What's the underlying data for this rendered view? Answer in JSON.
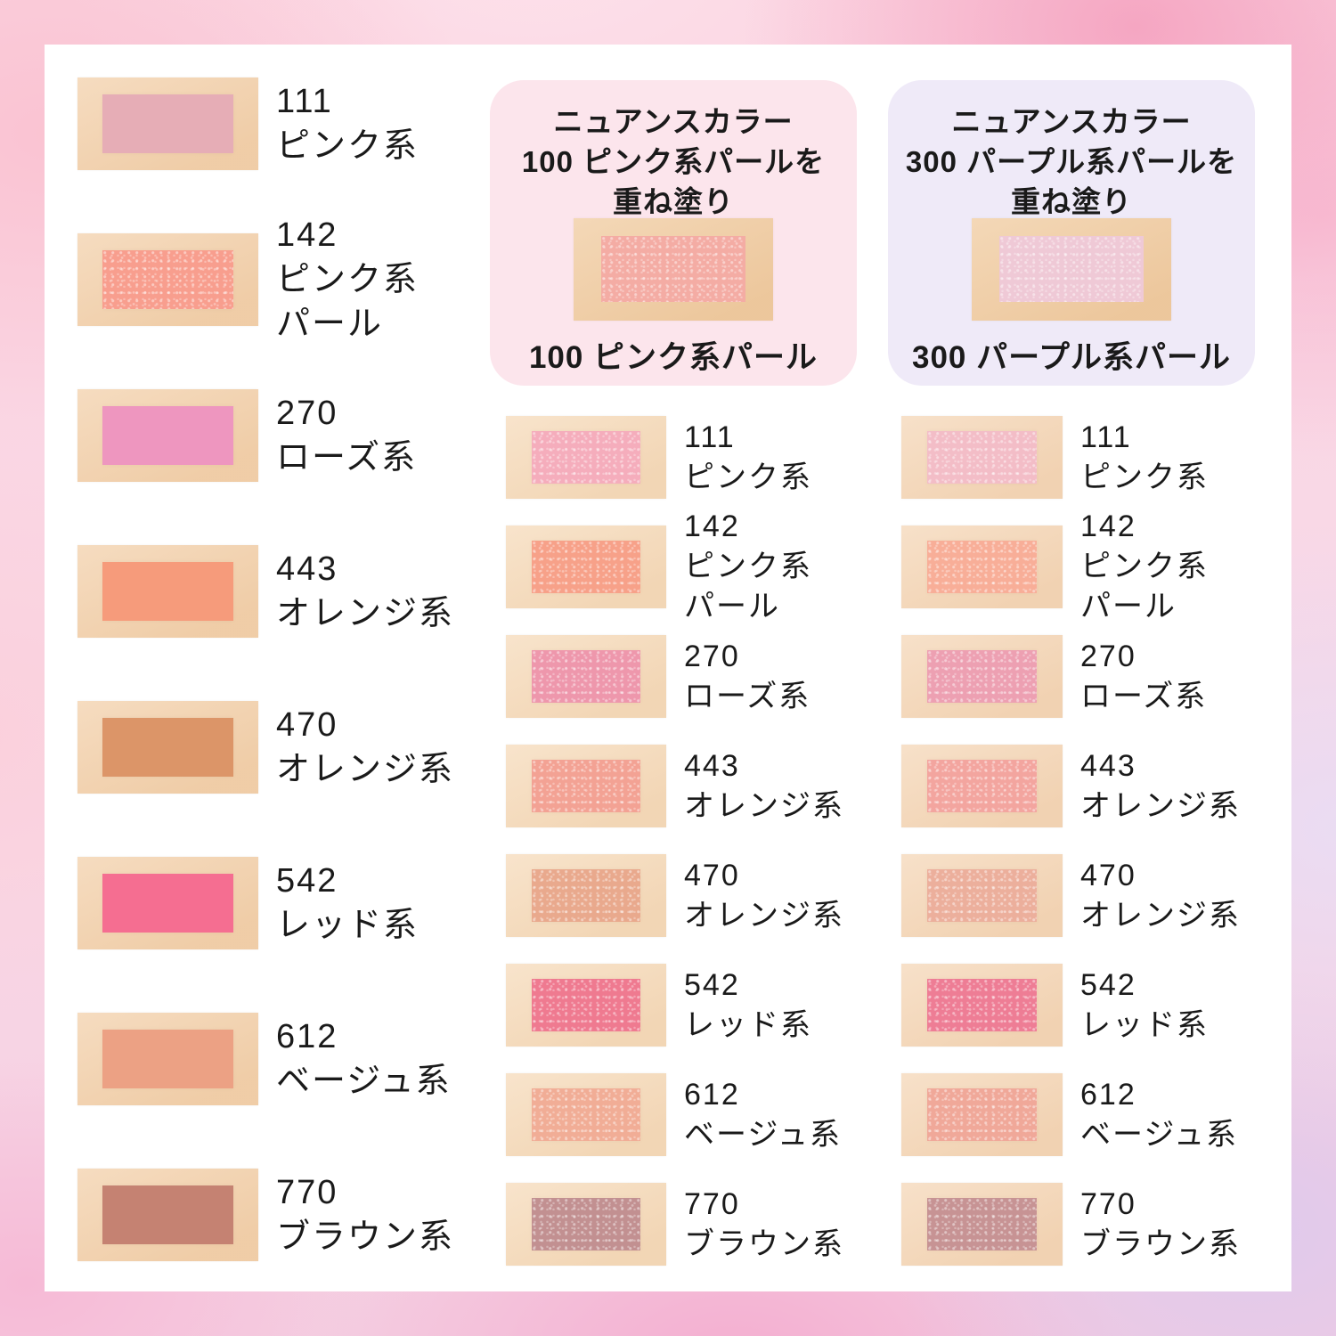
{
  "palette": {
    "content_bg": "#FFFFFF",
    "frame_pink": "#FAD3E1",
    "frame_deep_pink": "#F5A6C2",
    "frame_lavender": "#EADCF3",
    "text": "#1A1A1A"
  },
  "cards": {
    "pink": {
      "bg": "#FCE5EC",
      "title_lines": [
        "ニュアンスカラー",
        "100 ピンク系パールを",
        "重ね塗り"
      ],
      "caption": "100 ピンク系パール",
      "skin": "#F1CEA5",
      "swatch_color": "#F4ACA4"
    },
    "purple": {
      "bg": "#EFEAF8",
      "title_lines": [
        "ニュアンスカラー",
        "300 パープル系パールを",
        "重ね塗り"
      ],
      "caption": "300 パープル系パール",
      "skin": "#F1CEA5",
      "swatch_color": "#EFC9D6"
    }
  },
  "columns": {
    "left": {
      "skin": "#F3D2AE",
      "pearl_overlay": false,
      "rows": [
        {
          "number": "111",
          "name_lines": [
            "ピンク系"
          ],
          "color": "#E6ADB6",
          "pearl": false
        },
        {
          "number": "142",
          "name_lines": [
            "ピンク系",
            "パール"
          ],
          "color": "#F89E8E",
          "pearl": true
        },
        {
          "number": "270",
          "name_lines": [
            "ローズ系"
          ],
          "color": "#EE96BF",
          "pearl": false
        },
        {
          "number": "443",
          "name_lines": [
            "オレンジ系"
          ],
          "color": "#F69B7B",
          "pearl": false
        },
        {
          "number": "470",
          "name_lines": [
            "オレンジ系"
          ],
          "color": "#DC9568",
          "pearl": false
        },
        {
          "number": "542",
          "name_lines": [
            "レッド系"
          ],
          "color": "#F56E91",
          "pearl": false
        },
        {
          "number": "612",
          "name_lines": [
            "ベージュ系"
          ],
          "color": "#ECA184",
          "pearl": false
        },
        {
          "number": "770",
          "name_lines": [
            "ブラウン系"
          ],
          "color": "#C58272",
          "pearl": false
        }
      ]
    },
    "middle": {
      "skin": "#F6DCBD",
      "pearl_overlay": true,
      "rows": [
        {
          "number": "111",
          "name_lines": [
            "ピンク系"
          ],
          "color": "#F5ADBC"
        },
        {
          "number": "142",
          "name_lines": [
            "ピンク系",
            "パール"
          ],
          "color": "#F7A189"
        },
        {
          "number": "270",
          "name_lines": [
            "ローズ系"
          ],
          "color": "#EE97AC"
        },
        {
          "number": "443",
          "name_lines": [
            "オレンジ系"
          ],
          "color": "#F3A294"
        },
        {
          "number": "470",
          "name_lines": [
            "オレンジ系"
          ],
          "color": "#E9A98D"
        },
        {
          "number": "542",
          "name_lines": [
            "レッド系"
          ],
          "color": "#EF7A90"
        },
        {
          "number": "612",
          "name_lines": [
            "ベージュ系"
          ],
          "color": "#F1AD96"
        },
        {
          "number": "770",
          "name_lines": [
            "ブラウン系"
          ],
          "color": "#C29091"
        }
      ]
    },
    "right": {
      "skin": "#F5D8BA",
      "pearl_overlay": true,
      "rows": [
        {
          "number": "111",
          "name_lines": [
            "ピンク系"
          ],
          "color": "#F3BDC7"
        },
        {
          "number": "142",
          "name_lines": [
            "ピンク系",
            "パール"
          ],
          "color": "#F8AE98"
        },
        {
          "number": "270",
          "name_lines": [
            "ローズ系"
          ],
          "color": "#EDA0B2"
        },
        {
          "number": "443",
          "name_lines": [
            "オレンジ系"
          ],
          "color": "#F3A59F"
        },
        {
          "number": "470",
          "name_lines": [
            "オレンジ系"
          ],
          "color": "#ECAF9C"
        },
        {
          "number": "542",
          "name_lines": [
            "レッド系"
          ],
          "color": "#EE7D95"
        },
        {
          "number": "612",
          "name_lines": [
            "ベージュ系"
          ],
          "color": "#F0A899"
        },
        {
          "number": "770",
          "name_lines": [
            "ブラウン系"
          ],
          "color": "#C79394"
        }
      ]
    }
  }
}
